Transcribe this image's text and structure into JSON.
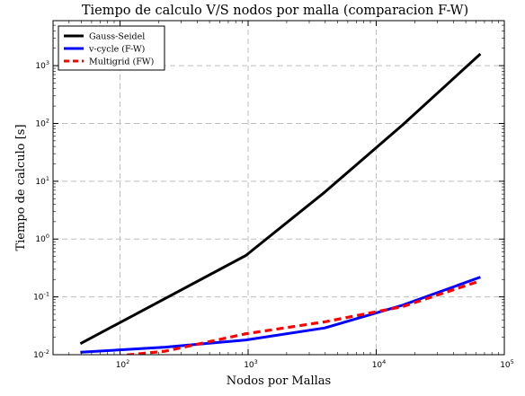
{
  "chart_data": {
    "type": "line",
    "title": "Tiempo de calculo V/S nodos por malla (comparacion F-W)",
    "xlabel": "Nodos por Mallas",
    "ylabel": "Tiempo de calculo [s]",
    "xscale": "log",
    "yscale": "log",
    "xlim": [
      30,
      100000
    ],
    "ylim": [
      0.01,
      6000
    ],
    "grid": true,
    "legend_position": "top-left",
    "x_ticks": [
      {
        "value": 100,
        "base": "10",
        "exp": "2"
      },
      {
        "value": 1000,
        "base": "10",
        "exp": "3"
      },
      {
        "value": 10000,
        "base": "10",
        "exp": "4"
      },
      {
        "value": 100000,
        "base": "10",
        "exp": "5"
      }
    ],
    "y_ticks": [
      {
        "value": 0.01,
        "base": "10",
        "exp": "-2"
      },
      {
        "value": 0.1,
        "base": "10",
        "exp": "-1"
      },
      {
        "value": 1,
        "base": "10",
        "exp": "0"
      },
      {
        "value": 10,
        "base": "10",
        "exp": "1"
      },
      {
        "value": 100,
        "base": "10",
        "exp": "2"
      },
      {
        "value": 1000,
        "base": "10",
        "exp": "3"
      }
    ],
    "series": [
      {
        "name": "Gauss-Seidel",
        "color": "#000000",
        "style": "solid",
        "points": [
          [
            49,
            0.0155
          ],
          [
            961,
            0.52
          ],
          [
            3969,
            6.5
          ],
          [
            16129,
            95
          ],
          [
            65025,
            1600
          ]
        ]
      },
      {
        "name": "v-cycle (F-W)",
        "color": "#0000ff",
        "style": "solid",
        "points": [
          [
            49,
            0.011
          ],
          [
            225,
            0.0135
          ],
          [
            961,
            0.018
          ],
          [
            3969,
            0.029
          ],
          [
            16129,
            0.072
          ],
          [
            65025,
            0.22
          ]
        ]
      },
      {
        "name": "Multigrid (FW)",
        "color": "#ff0000",
        "style": "dashed",
        "points": [
          [
            49,
            0.0082
          ],
          [
            225,
            0.0115
          ],
          [
            961,
            0.023
          ],
          [
            3969,
            0.037
          ],
          [
            16129,
            0.068
          ],
          [
            65025,
            0.19
          ]
        ]
      }
    ]
  }
}
